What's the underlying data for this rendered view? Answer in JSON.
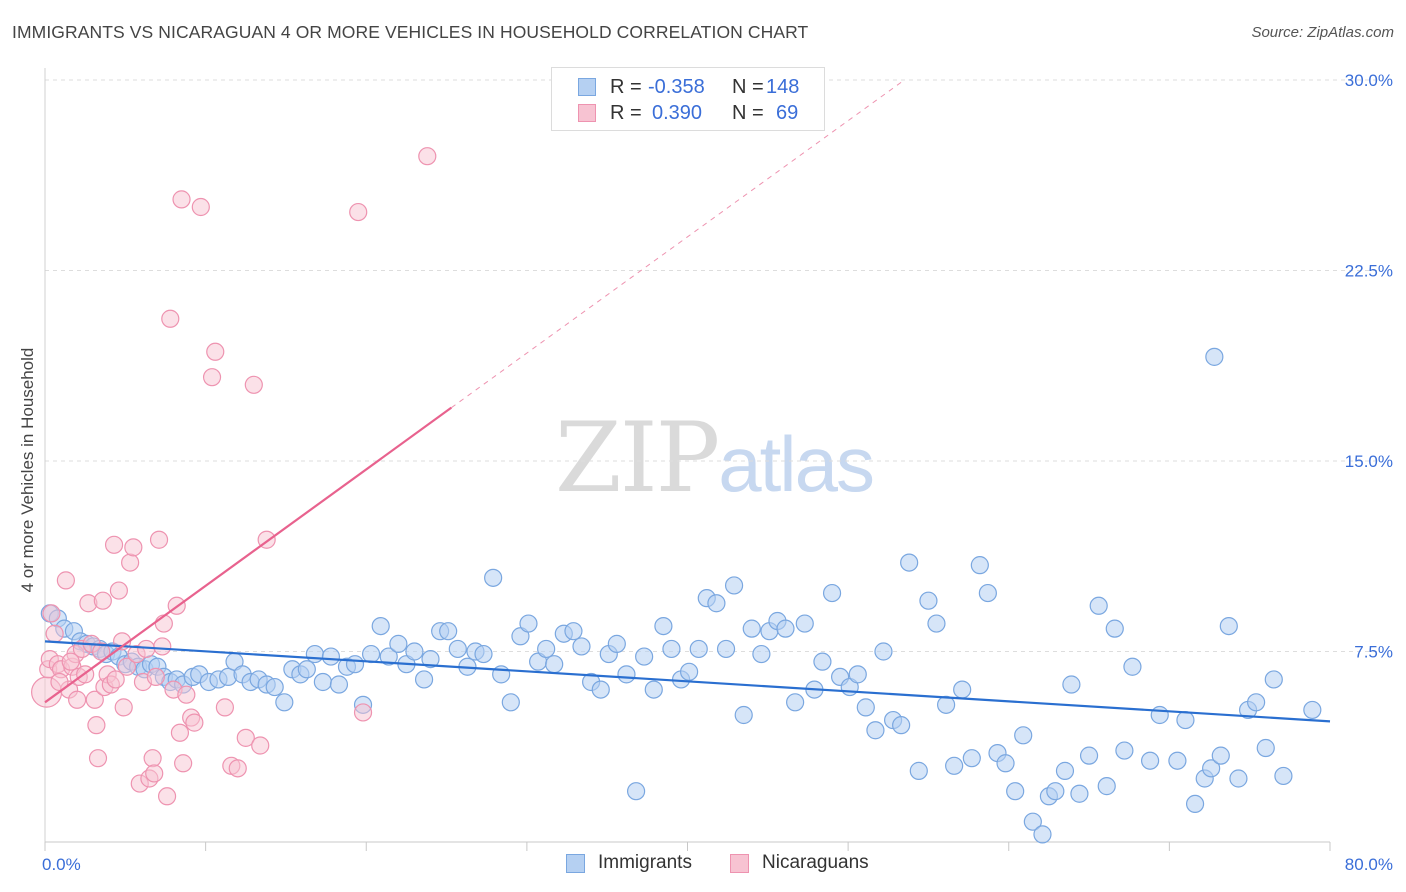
{
  "title": "IMMIGRANTS VS NICARAGUAN 4 OR MORE VEHICLES IN HOUSEHOLD CORRELATION CHART",
  "source": "Source: ZipAtlas.com",
  "watermark": {
    "zip": "ZIP",
    "atlas": "atlas"
  },
  "legend": {
    "rows": [
      {
        "r_key": "R =",
        "r_value": "-0.358",
        "n_key": "N =",
        "n_value": "148"
      },
      {
        "r_key": "R =",
        "r_value": "0.390",
        "n_key": "N =",
        "n_value": "69"
      }
    ]
  },
  "bottom_legend": {
    "immigrants": "Immigrants",
    "nicaraguans": "Nicaraguans"
  },
  "colors": {
    "immigrants_fill": "#b5d0f2",
    "immigrants_stroke": "#7aa7e0",
    "immigrants_line": "#2a6fd0",
    "nicaraguans_fill": "#f7c3d2",
    "nicaraguans_stroke": "#ee93b0",
    "nicaraguans_line": "#e8628e",
    "axis_text": "#3a6ed8",
    "grid": "#dddddd"
  },
  "chart_data": {
    "type": "scatter",
    "title": "IMMIGRANTS VS NICARAGUAN 4 OR MORE VEHICLES IN HOUSEHOLD CORRELATION CHART",
    "xlabel": "",
    "ylabel": "4 or more Vehicles in Household",
    "xlim": [
      0,
      80
    ],
    "ylim": [
      0,
      30
    ],
    "x_tick_labels": [
      "0.0%",
      "80.0%"
    ],
    "y_ticks": [
      7.5,
      15.0,
      22.5,
      30.0
    ],
    "y_tick_labels": [
      "7.5%",
      "15.0%",
      "22.5%",
      "30.0%"
    ],
    "grid": true,
    "legend_position": "top-center",
    "series": [
      {
        "name": "Immigrants",
        "R": -0.358,
        "N": 148,
        "trend": {
          "x": [
            0,
            80
          ],
          "y": [
            7.9,
            4.75
          ]
        },
        "points": [
          [
            0.3,
            9.0
          ],
          [
            0.8,
            8.8
          ],
          [
            1.2,
            8.4
          ],
          [
            1.8,
            8.3
          ],
          [
            2.2,
            7.9
          ],
          [
            2.6,
            7.8
          ],
          [
            3.0,
            7.7
          ],
          [
            3.4,
            7.6
          ],
          [
            3.8,
            7.4
          ],
          [
            4.2,
            7.5
          ],
          [
            4.6,
            7.3
          ],
          [
            5.0,
            7.0
          ],
          [
            5.4,
            7.1
          ],
          [
            5.8,
            6.9
          ],
          [
            6.2,
            6.8
          ],
          [
            6.6,
            7.0
          ],
          [
            7.0,
            6.9
          ],
          [
            7.4,
            6.5
          ],
          [
            7.8,
            6.3
          ],
          [
            8.2,
            6.4
          ],
          [
            8.6,
            6.2
          ],
          [
            9.2,
            6.5
          ],
          [
            9.6,
            6.6
          ],
          [
            10.2,
            6.3
          ],
          [
            10.8,
            6.4
          ],
          [
            11.4,
            6.5
          ],
          [
            11.8,
            7.1
          ],
          [
            12.3,
            6.6
          ],
          [
            12.8,
            6.3
          ],
          [
            13.3,
            6.4
          ],
          [
            13.8,
            6.2
          ],
          [
            14.3,
            6.1
          ],
          [
            14.9,
            5.5
          ],
          [
            15.4,
            6.8
          ],
          [
            15.9,
            6.6
          ],
          [
            16.3,
            6.8
          ],
          [
            16.8,
            7.4
          ],
          [
            17.3,
            6.3
          ],
          [
            17.8,
            7.3
          ],
          [
            18.3,
            6.2
          ],
          [
            18.8,
            6.9
          ],
          [
            19.3,
            7.0
          ],
          [
            19.8,
            5.4
          ],
          [
            20.3,
            7.4
          ],
          [
            20.9,
            8.5
          ],
          [
            21.4,
            7.3
          ],
          [
            22.0,
            7.8
          ],
          [
            22.5,
            7.0
          ],
          [
            23.0,
            7.5
          ],
          [
            23.6,
            6.4
          ],
          [
            24.0,
            7.2
          ],
          [
            24.6,
            8.3
          ],
          [
            25.1,
            8.3
          ],
          [
            25.7,
            7.6
          ],
          [
            26.3,
            6.9
          ],
          [
            26.8,
            7.5
          ],
          [
            27.3,
            7.4
          ],
          [
            27.9,
            10.4
          ],
          [
            28.4,
            6.6
          ],
          [
            29.0,
            5.5
          ],
          [
            29.6,
            8.1
          ],
          [
            30.1,
            8.6
          ],
          [
            30.7,
            7.1
          ],
          [
            31.2,
            7.6
          ],
          [
            31.7,
            7.0
          ],
          [
            32.3,
            8.2
          ],
          [
            32.9,
            8.3
          ],
          [
            33.4,
            7.7
          ],
          [
            34.0,
            6.3
          ],
          [
            34.6,
            6.0
          ],
          [
            35.1,
            7.4
          ],
          [
            35.6,
            7.8
          ],
          [
            36.2,
            6.6
          ],
          [
            36.8,
            2.0
          ],
          [
            37.3,
            7.3
          ],
          [
            37.9,
            6.0
          ],
          [
            38.5,
            8.5
          ],
          [
            39.0,
            7.6
          ],
          [
            39.6,
            6.4
          ],
          [
            40.1,
            6.7
          ],
          [
            40.7,
            7.6
          ],
          [
            41.2,
            9.6
          ],
          [
            41.8,
            9.4
          ],
          [
            42.4,
            7.6
          ],
          [
            42.9,
            10.1
          ],
          [
            43.5,
            5.0
          ],
          [
            44.0,
            8.4
          ],
          [
            44.6,
            7.4
          ],
          [
            45.1,
            8.3
          ],
          [
            45.6,
            8.7
          ],
          [
            46.1,
            8.4
          ],
          [
            46.7,
            5.5
          ],
          [
            47.3,
            8.6
          ],
          [
            47.9,
            6.0
          ],
          [
            48.4,
            7.1
          ],
          [
            49.0,
            9.8
          ],
          [
            49.5,
            6.5
          ],
          [
            50.1,
            6.1
          ],
          [
            50.6,
            6.6
          ],
          [
            51.1,
            5.3
          ],
          [
            51.7,
            4.4
          ],
          [
            52.2,
            7.5
          ],
          [
            52.8,
            4.8
          ],
          [
            53.3,
            4.6
          ],
          [
            53.8,
            11.0
          ],
          [
            54.4,
            2.8
          ],
          [
            55.0,
            9.5
          ],
          [
            55.5,
            8.6
          ],
          [
            56.1,
            5.4
          ],
          [
            56.6,
            3.0
          ],
          [
            57.1,
            6.0
          ],
          [
            57.7,
            3.3
          ],
          [
            58.2,
            10.9
          ],
          [
            58.7,
            9.8
          ],
          [
            59.3,
            3.5
          ],
          [
            59.8,
            3.1
          ],
          [
            60.4,
            2.0
          ],
          [
            60.9,
            4.2
          ],
          [
            61.5,
            0.8
          ],
          [
            62.1,
            0.3
          ],
          [
            62.5,
            1.8
          ],
          [
            62.9,
            2.0
          ],
          [
            63.5,
            2.8
          ],
          [
            63.9,
            6.2
          ],
          [
            64.4,
            1.9
          ],
          [
            65.0,
            3.4
          ],
          [
            65.6,
            9.3
          ],
          [
            66.1,
            2.2
          ],
          [
            66.6,
            8.4
          ],
          [
            67.2,
            3.6
          ],
          [
            67.7,
            6.9
          ],
          [
            68.8,
            3.2
          ],
          [
            69.4,
            5.0
          ],
          [
            70.5,
            3.2
          ],
          [
            71.0,
            4.8
          ],
          [
            71.6,
            1.5
          ],
          [
            72.2,
            2.5
          ],
          [
            72.6,
            2.9
          ],
          [
            73.2,
            3.4
          ],
          [
            73.7,
            8.5
          ],
          [
            74.3,
            2.5
          ],
          [
            74.9,
            5.2
          ],
          [
            75.4,
            5.5
          ],
          [
            76.0,
            3.7
          ],
          [
            76.5,
            6.4
          ],
          [
            77.1,
            2.6
          ],
          [
            78.9,
            5.2
          ],
          [
            72.8,
            19.1
          ]
        ]
      },
      {
        "name": "Nicaraguans",
        "R": 0.39,
        "N": 69,
        "trend": {
          "x": [
            0,
            25.3
          ],
          "y": [
            5.5,
            17.1
          ]
        },
        "trend_extension": {
          "x": [
            25.3,
            53.5
          ],
          "y": [
            17.1,
            30.0
          ]
        },
        "points": [
          [
            0.1,
            5.9
          ],
          [
            0.2,
            6.8
          ],
          [
            0.3,
            7.2
          ],
          [
            0.4,
            9.0
          ],
          [
            0.6,
            8.2
          ],
          [
            0.8,
            7.0
          ],
          [
            1.0,
            6.8
          ],
          [
            1.3,
            10.3
          ],
          [
            1.5,
            6.0
          ],
          [
            1.7,
            6.9
          ],
          [
            1.9,
            7.4
          ],
          [
            2.1,
            6.5
          ],
          [
            2.3,
            7.6
          ],
          [
            2.5,
            6.6
          ],
          [
            2.7,
            9.4
          ],
          [
            2.9,
            7.8
          ],
          [
            3.1,
            5.6
          ],
          [
            3.2,
            4.6
          ],
          [
            3.3,
            3.3
          ],
          [
            3.5,
            7.5
          ],
          [
            3.7,
            6.1
          ],
          [
            3.9,
            6.6
          ],
          [
            4.1,
            6.2
          ],
          [
            4.3,
            11.7
          ],
          [
            4.4,
            6.4
          ],
          [
            4.6,
            9.9
          ],
          [
            4.8,
            7.9
          ],
          [
            4.9,
            5.3
          ],
          [
            5.1,
            6.9
          ],
          [
            5.3,
            11.0
          ],
          [
            5.5,
            11.6
          ],
          [
            5.7,
            7.4
          ],
          [
            5.9,
            2.3
          ],
          [
            6.1,
            6.3
          ],
          [
            6.3,
            7.6
          ],
          [
            6.5,
            2.5
          ],
          [
            6.7,
            3.3
          ],
          [
            6.8,
            2.7
          ],
          [
            7.1,
            11.9
          ],
          [
            7.3,
            7.7
          ],
          [
            7.4,
            8.6
          ],
          [
            7.6,
            1.8
          ],
          [
            7.8,
            20.6
          ],
          [
            8.0,
            6.0
          ],
          [
            8.2,
            9.3
          ],
          [
            8.4,
            4.3
          ],
          [
            8.6,
            3.1
          ],
          [
            8.8,
            5.8
          ],
          [
            9.1,
            4.9
          ],
          [
            9.3,
            4.7
          ],
          [
            8.5,
            25.3
          ],
          [
            9.7,
            25.0
          ],
          [
            10.4,
            18.3
          ],
          [
            10.6,
            19.3
          ],
          [
            11.2,
            5.3
          ],
          [
            11.6,
            3.0
          ],
          [
            12.0,
            2.9
          ],
          [
            12.5,
            4.1
          ],
          [
            13.0,
            18.0
          ],
          [
            13.4,
            3.8
          ],
          [
            13.8,
            11.9
          ],
          [
            19.5,
            24.8
          ],
          [
            23.8,
            27.0
          ],
          [
            19.8,
            5.1
          ],
          [
            3.6,
            9.5
          ],
          [
            2.0,
            5.6
          ],
          [
            0.9,
            6.3
          ],
          [
            6.9,
            6.5
          ],
          [
            1.6,
            7.1
          ]
        ]
      }
    ]
  }
}
